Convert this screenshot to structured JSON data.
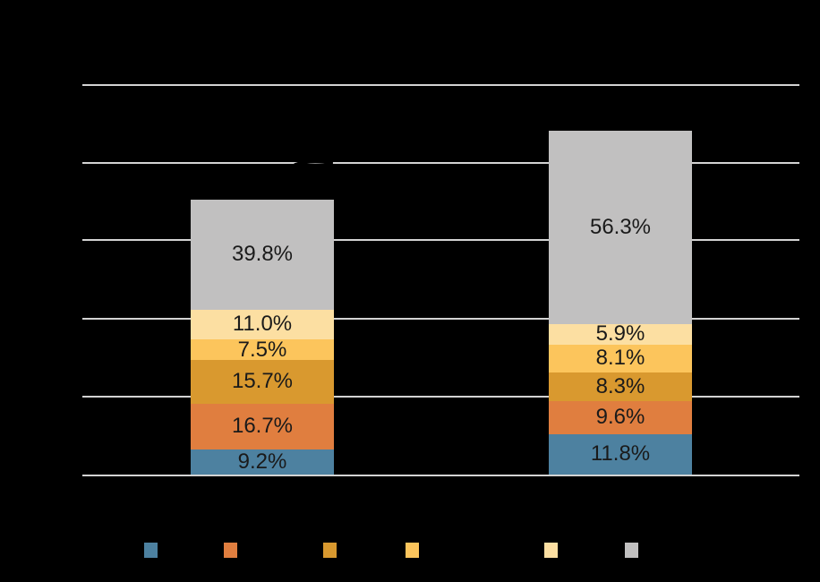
{
  "canvas": {
    "background": "#000000",
    "gridline_color": "#d3d3d3",
    "label_text_color": "#1a1a1a"
  },
  "chart_data": {
    "type": "bar",
    "stacked": true,
    "orientation": "vertical",
    "categories": [
      "",
      ""
    ],
    "series": [
      {
        "name": "blue-segment",
        "color": "#4d81a0",
        "values": [
          9.2,
          11.8
        ],
        "labels": [
          "9.2%",
          "11.8%"
        ]
      },
      {
        "name": "orange-segment",
        "color": "#e07e3f",
        "values": [
          16.7,
          9.6
        ],
        "labels": [
          "16.7%",
          "9.6%"
        ]
      },
      {
        "name": "gold-segment",
        "color": "#d9992f",
        "values": [
          15.7,
          8.3
        ],
        "labels": [
          "15.7%",
          "8.3%"
        ]
      },
      {
        "name": "yellow-segment",
        "color": "#fcc55c",
        "values": [
          7.5,
          8.1
        ],
        "labels": [
          "7.5%",
          "8.1%"
        ]
      },
      {
        "name": "light-yellow-segment",
        "color": "#fcdfa2",
        "values": [
          11.0,
          5.9
        ],
        "labels": [
          "11.0%",
          "5.9%"
        ]
      },
      {
        "name": "gray-segment",
        "color": "#c1c0c0",
        "values": [
          39.8,
          56.3
        ],
        "labels": [
          "39.8%",
          "56.3%"
        ]
      }
    ],
    "grid": true,
    "gridline_count": 6,
    "legend_position": "bottom",
    "legend": [
      {
        "swatch_color": "#4d81a0"
      },
      {
        "swatch_color": "#e07e3f"
      },
      {
        "swatch_color": "#d9992f"
      },
      {
        "swatch_color": "#fcc55c"
      },
      {
        "swatch_color": "#fcdfa2"
      },
      {
        "swatch_color": "#c1c0c0"
      }
    ]
  }
}
